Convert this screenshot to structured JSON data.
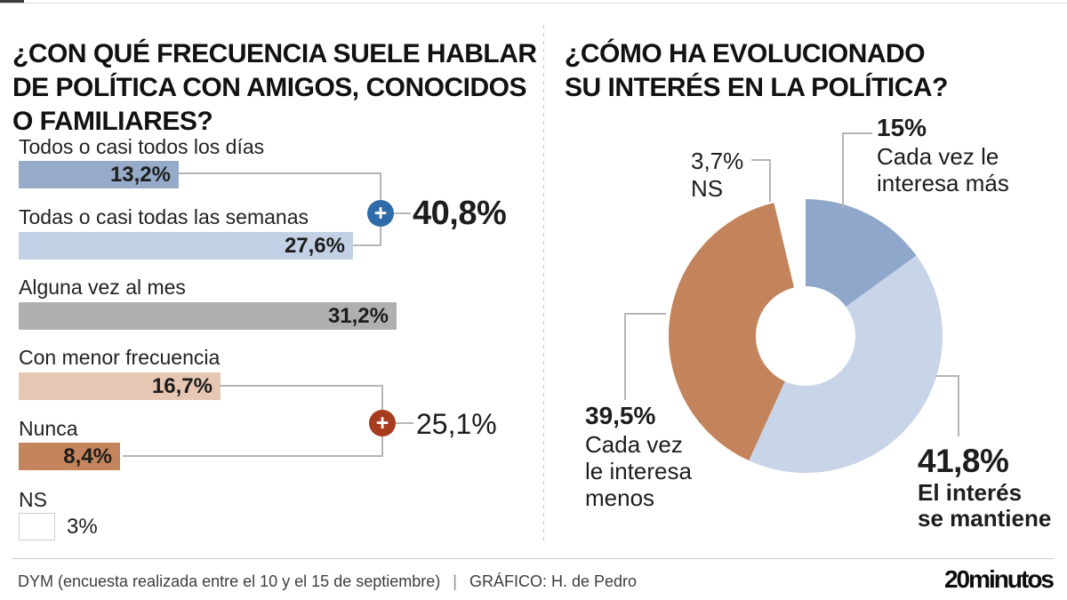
{
  "chart_data": [
    {
      "type": "bar",
      "orientation": "horizontal",
      "title": "¿CON QUÉ FRECUENCIA SUELE HABLAR\nDE POLÍTICA CON AMIGOS, CONOCIDOS\nO FAMILIARES?",
      "unit": "%",
      "xlim": [
        0,
        33
      ],
      "grid": false,
      "categories": [
        "Todos o casi todos los días",
        "Todas o casi todas las semanas",
        "Alguna vez al mes",
        "Con menor frecuencia",
        "Nunca",
        "NS"
      ],
      "values": [
        13.2,
        27.6,
        31.2,
        16.7,
        8.4,
        3
      ],
      "value_labels": [
        "13,2%",
        "27,6%",
        "31,2%",
        "16,7%",
        "8,4%",
        "3%"
      ],
      "colors": [
        "#96abc9",
        "#c2d1e5",
        "#b0b0b0",
        "#e6c7b3",
        "#c4845c",
        "#ffffff"
      ],
      "annotations": [
        {
          "value": 40.8,
          "value_label": "40,8%",
          "combines": [
            "Todos o casi todos los días",
            "Todas o casi todas las semanas"
          ],
          "badge_glyph": "+",
          "badge_color": "#2f6ba9"
        },
        {
          "value": 25.1,
          "value_label": "25,1%",
          "combines": [
            "Con menor frecuencia",
            "Nunca"
          ],
          "badge_glyph": "+",
          "badge_color": "#a63b1d"
        }
      ]
    },
    {
      "type": "pie",
      "donut": true,
      "title": "¿CÓMO HA EVOLUCIONADO\nSU INTERÉS EN LA POLÍTICA?",
      "start_angle_deg": 0,
      "direction": "clockwise",
      "legend_position": "callouts",
      "labels": [
        "Cada vez le interesa más",
        "El interés se mantiene",
        "Cada vez le interesa menos",
        "NS"
      ],
      "values": [
        15,
        41.8,
        39.5,
        3.7
      ],
      "value_labels": [
        "15%",
        "41,8%",
        "39,5%",
        "3,7%"
      ],
      "callout_labels": [
        "Cada vez le\ninteresa más",
        "El interés\nse mantiene",
        "Cada vez\nle interesa\nmenos",
        "NS"
      ],
      "colors": [
        "#8fa7cb",
        "#c8d4e7",
        "#c3845b",
        "#ffffff"
      ]
    }
  ],
  "footer": {
    "source": "DYM (encuesta realizada entre el 10 y el 15 de septiembre)",
    "separator": "|",
    "credit": "GRÁFICO: H. de Pedro",
    "logo": "20minutos"
  }
}
